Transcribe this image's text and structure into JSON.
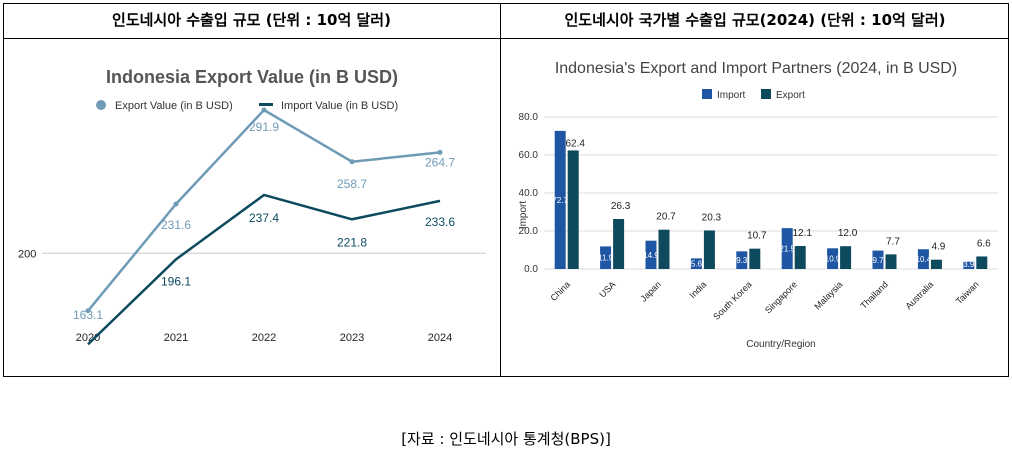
{
  "panels": {
    "left_header": "인도네시아 수출입 규모 (단위 : 10억 달러)",
    "right_header": "인도네시아 국가별 수출입 규모(2024) (단위 : 10억 달러)"
  },
  "source": "[자료 : 인도네시아 통계청(BPS)]",
  "colors": {
    "export_line": "#6f9bb7",
    "import_line": "#0d4a5e",
    "import_bar": "#1f56a3",
    "export_bar": "#0d4a5e"
  },
  "chart_data": [
    {
      "type": "line",
      "title": "Indonesia Export Value (in B USD)",
      "x": [
        "2020",
        "2021",
        "2022",
        "2023",
        "2024"
      ],
      "y_tick_labels": [
        "200"
      ],
      "ylim": [
        145,
        315
      ],
      "grid": true,
      "legend": "top",
      "series": [
        {
          "name": "Export Value (in B USD)",
          "values": [
            163.1,
            231.6,
            291.9,
            258.7,
            264.7
          ],
          "labels": [
            "163.1",
            "231.6",
            "291.9",
            "258.7",
            "264.7"
          ]
        },
        {
          "name": "Import Value (in B USD)",
          "values": [
            141.6,
            196.1,
            237.4,
            221.8,
            233.6
          ],
          "labels": [
            "",
            "196.1",
            "237.4",
            "221.8",
            "233.6"
          ]
        }
      ]
    },
    {
      "type": "bar",
      "title": "Indonesia's Export and Import Partners (2024, in B USD)",
      "xlabel": "Country/Region",
      "ylabel": "Import",
      "categories": [
        "China",
        "USA",
        "Japan",
        "India",
        "South Korea",
        "Singapore",
        "Malaysia",
        "Thailand",
        "Australia",
        "Taiwan"
      ],
      "y_ticks": [
        "0.0",
        "20.0",
        "40.0",
        "60.0",
        "80.0"
      ],
      "ylim": [
        0,
        80
      ],
      "grid": true,
      "legend": "top",
      "series": [
        {
          "name": "Import",
          "values": [
            72.7,
            11.9,
            14.9,
            5.6,
            9.3,
            21.5,
            10.9,
            9.7,
            10.4,
            3.9
          ],
          "labels": [
            "72.7",
            "11.9",
            "14.9",
            "5.6",
            "9.3",
            "21.5",
            "10.9",
            "9.7",
            "10.4",
            "3.9"
          ]
        },
        {
          "name": "Export",
          "values": [
            62.4,
            26.3,
            20.7,
            20.3,
            10.7,
            12.1,
            12.0,
            7.7,
            4.9,
            6.6
          ],
          "labels": [
            "62.4",
            "26.3",
            "20.7",
            "20.3",
            "10.7",
            "12.1",
            "12.0",
            "7.7",
            "4.9",
            "6.6"
          ]
        }
      ]
    }
  ]
}
